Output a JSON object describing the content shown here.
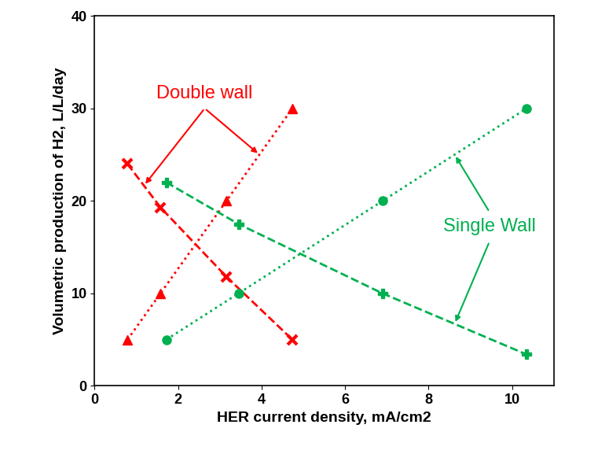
{
  "chart_data": {
    "type": "line",
    "x_label": "HER current density, mA/cm2",
    "y_label": "Volumetric production of H2, L/L/day",
    "xlim": [
      0,
      11
    ],
    "xticks": [
      0,
      2,
      4,
      6,
      8,
      10
    ],
    "ylim": [
      0,
      40
    ],
    "yticks": [
      0,
      10,
      20,
      30,
      40
    ],
    "grid": false,
    "series": [
      {
        "color": "#ff0000",
        "marker": "triangle",
        "line_style": "dotted",
        "x": [
          0.79,
          1.58,
          3.16,
          4.74
        ],
        "values": [
          5,
          10,
          20,
          30
        ]
      },
      {
        "color": "#ff0000",
        "marker": "x",
        "line_style": "dashed",
        "x": [
          0.79,
          1.58,
          3.16,
          4.74
        ],
        "values": [
          24,
          19.3,
          11.8,
          5
        ]
      },
      {
        "color": "#00b050",
        "marker": "circle",
        "line_style": "dotted",
        "x": [
          1.72,
          3.45,
          6.9,
          10.35
        ],
        "values": [
          5,
          10,
          20,
          30
        ]
      },
      {
        "color": "#00b050",
        "marker": "plus",
        "line_style": "dashed",
        "x": [
          1.72,
          3.45,
          6.9,
          10.35
        ],
        "values": [
          22,
          17.5,
          10,
          3.4
        ]
      }
    ],
    "annotations": [
      {
        "text": "Double wall",
        "color": "#ff0000"
      },
      {
        "text": "Single Wall",
        "color": "#00b050"
      }
    ]
  }
}
